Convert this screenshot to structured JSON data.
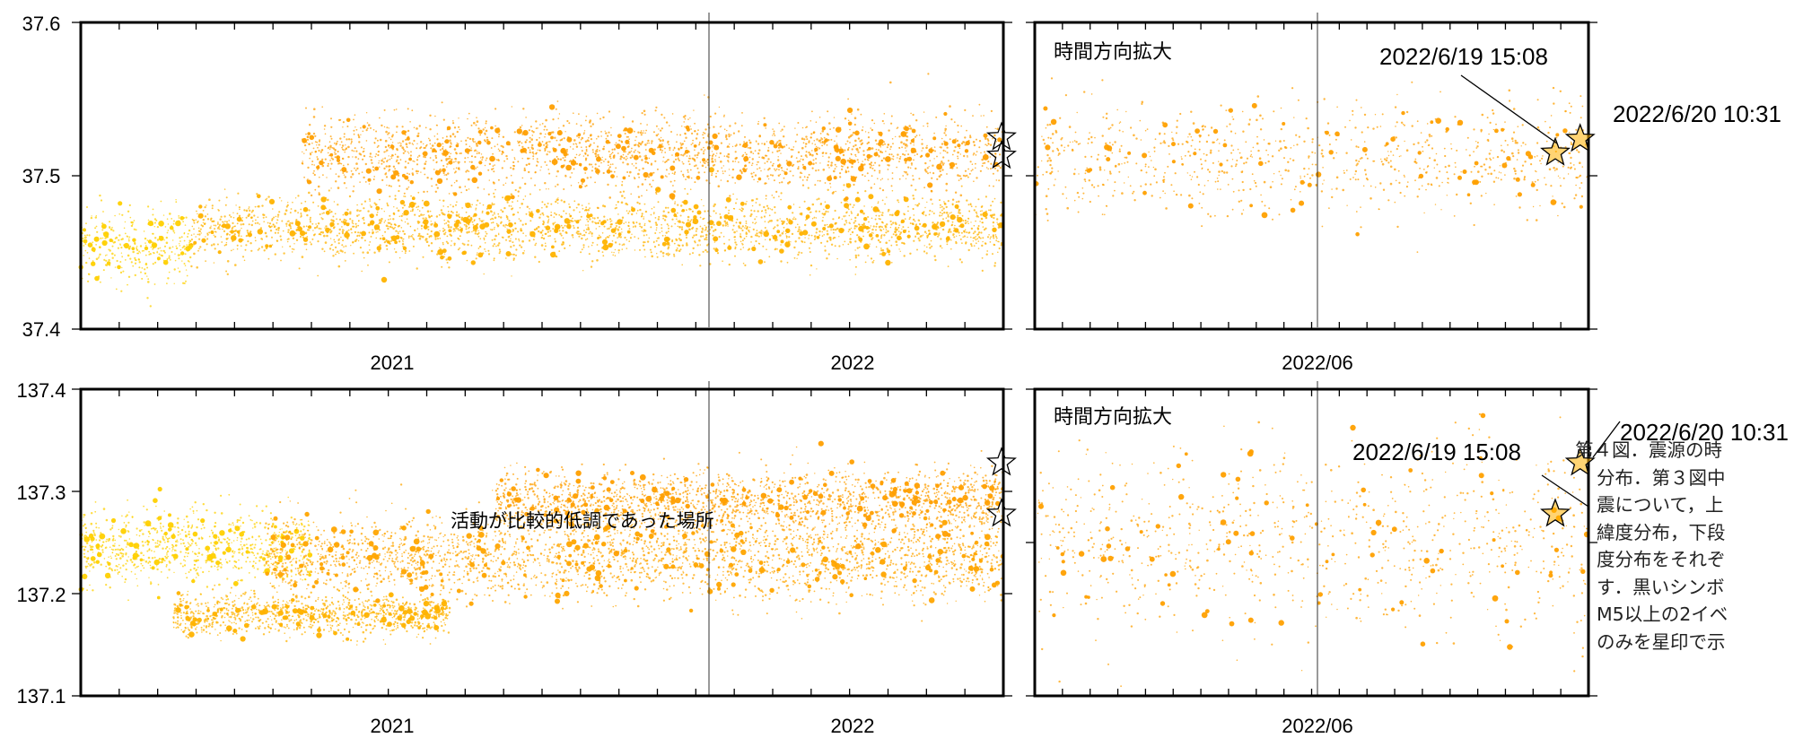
{
  "chart_data": [
    {
      "type": "scatter",
      "panel": "top-left",
      "ylim": [
        37.4,
        37.6
      ],
      "yticks": [
        "37.6",
        "37.5",
        "37.4"
      ],
      "xticklabels": [
        "2021",
        "2022"
      ],
      "clusters": [
        {
          "from": 0.0,
          "to": 0.12,
          "center": 37.455,
          "spread": 0.012,
          "color": "#ffd000"
        },
        {
          "from": 0.12,
          "to": 1.0,
          "center": 37.466,
          "spread": 0.01,
          "color": "#ffb300"
        },
        {
          "from": 0.24,
          "to": 1.0,
          "center": 37.515,
          "spread": 0.012,
          "color": "#ff9f00"
        }
      ],
      "stars": [
        {
          "t": 0.998,
          "y": 37.525
        },
        {
          "t": 0.998,
          "y": 37.513
        }
      ]
    },
    {
      "type": "scatter",
      "panel": "top-right",
      "ylim": [
        37.4,
        37.6
      ],
      "xticklabels": [
        "2022/06"
      ],
      "annotation": "時間方向拡大",
      "clusters": [
        {
          "from": 0.0,
          "to": 1.0,
          "center": 37.51,
          "spread": 0.018,
          "color": "#ffa000"
        }
      ],
      "stars": [
        {
          "t": 0.94,
          "y": 37.515,
          "label": "2022/6/19 15:08"
        },
        {
          "t": 0.985,
          "y": 37.524,
          "label": "2022/6/20 10:31"
        }
      ]
    },
    {
      "type": "scatter",
      "panel": "bottom-left",
      "ylim": [
        137.1,
        137.4
      ],
      "yticks": [
        "137.4",
        "137.3",
        "137.2",
        "137.1"
      ],
      "xticklabels": [
        "2021",
        "2022"
      ],
      "annotation": "活動が比較的低調であった場所",
      "clusters": [
        {
          "from": 0.0,
          "to": 0.25,
          "center": 137.245,
          "spread": 0.018,
          "color": "#ffd000"
        },
        {
          "from": 0.1,
          "to": 0.4,
          "center": 137.18,
          "spread": 0.01,
          "color": "#ffb300"
        },
        {
          "from": 0.2,
          "to": 1.0,
          "center": 137.235,
          "spread": 0.02,
          "color": "#ffa500"
        },
        {
          "from": 0.45,
          "to": 1.0,
          "center": 137.29,
          "spread": 0.015,
          "color": "#ff9f00"
        }
      ],
      "stars": [
        {
          "t": 0.998,
          "y": 137.328
        },
        {
          "t": 0.998,
          "y": 137.278
        }
      ]
    },
    {
      "type": "scatter",
      "panel": "bottom-right",
      "ylim": [
        137.1,
        137.4
      ],
      "xticklabels": [
        "2022/06"
      ],
      "annotation": "時間方向拡大",
      "clusters": [
        {
          "from": 0.0,
          "to": 1.0,
          "center": 137.25,
          "spread": 0.045,
          "color": "#ffa000"
        }
      ],
      "stars": [
        {
          "t": 0.94,
          "y": 137.278,
          "label": "2022/6/19 15:08"
        },
        {
          "t": 0.985,
          "y": 137.328,
          "label": "2022/6/20 10:31"
        }
      ]
    }
  ],
  "caption_lines": [
    "第４図．震源の時",
    "分布．第３図中",
    "震について，上",
    "緯度分布，下段",
    "度分布をそれぞ",
    "す．黒いシンボ",
    "M5以上の2イベ",
    "のみを星印で示"
  ]
}
